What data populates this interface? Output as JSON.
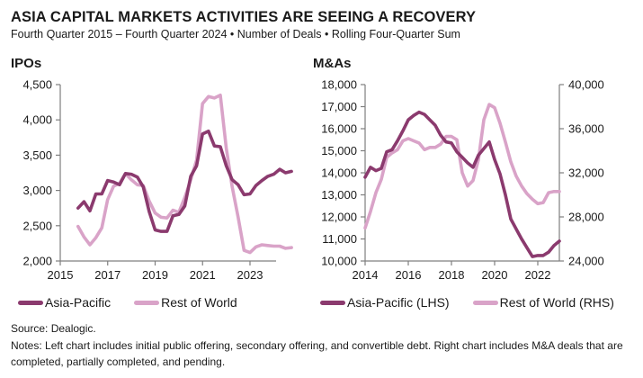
{
  "title": "ASIA CAPITAL MARKETS ACTIVITIES ARE SEEING A RECOVERY",
  "subtitle": "Fourth Quarter 2015 – Fourth Quarter 2024 • Number of Deals • Rolling Four-Quarter Sum",
  "source": "Source: Dealogic.",
  "notes": "Notes: Left chart includes initial public offering, secondary offering, and convertible debt. Right chart includes M&A deals that are completed, partially completed, and pending.",
  "colors": {
    "asia_pacific": "#8b3a6e",
    "rest_of_world": "#d9a3c8",
    "axis": "#7f7f7f"
  },
  "chart_data": [
    {
      "type": "line",
      "title": "IPOs",
      "xlabel": "",
      "ylabel": "",
      "x_start": 2015.75,
      "x_step": 0.25,
      "xlim": [
        2015,
        2024.1
      ],
      "xticks": [
        2015,
        2017,
        2019,
        2021,
        2023
      ],
      "ylim": [
        2000,
        4500
      ],
      "yticks": [
        2000,
        2500,
        3000,
        3500,
        4000,
        4500
      ],
      "ytick_labels": [
        "2,000",
        "2,500",
        "3,000",
        "3,500",
        "4,000",
        "4,500"
      ],
      "grid": false,
      "legend": "bottom",
      "series": [
        {
          "name": "Asia-Pacific",
          "color_key": "asia_pacific",
          "values": [
            2750,
            2840,
            2710,
            2950,
            2950,
            3140,
            3120,
            3080,
            3240,
            3230,
            3190,
            3050,
            2700,
            2440,
            2420,
            2420,
            2640,
            2660,
            2780,
            3200,
            3350,
            3800,
            3840,
            3630,
            3620,
            3350,
            3150,
            3080,
            2940,
            2950,
            3070,
            3140,
            3200,
            3230,
            3300,
            3250,
            3270
          ]
        },
        {
          "name": "Rest of World",
          "color_key": "rest_of_world",
          "values": [
            2490,
            2340,
            2230,
            2330,
            2470,
            2870,
            3060,
            3100,
            3240,
            3150,
            3080,
            3070,
            2850,
            2680,
            2620,
            2610,
            2720,
            2690,
            2900,
            3150,
            3430,
            4230,
            4330,
            4310,
            4350,
            3600,
            3050,
            2620,
            2150,
            2120,
            2200,
            2230,
            2220,
            2210,
            2210,
            2180,
            2190
          ]
        }
      ]
    },
    {
      "type": "line",
      "title": "M&As",
      "xlabel": "",
      "ylabel": "",
      "x_start": 2014,
      "x_step": 0.25,
      "xlim": [
        2014,
        2023
      ],
      "xticks": [
        2014,
        2016,
        2018,
        2020,
        2022
      ],
      "ylim": [
        10000,
        18000
      ],
      "yticks": [
        10000,
        11000,
        12000,
        13000,
        14000,
        15000,
        16000,
        17000,
        18000
      ],
      "ytick_labels": [
        "10,000",
        "11,000",
        "12,000",
        "13,000",
        "14,000",
        "15,000",
        "16,000",
        "17,000",
        "18,000"
      ],
      "y2lim": [
        24000,
        40000
      ],
      "y2ticks": [
        24000,
        28000,
        32000,
        36000,
        40000
      ],
      "y2tick_labels": [
        "24,000",
        "28,000",
        "32,000",
        "36,000",
        "40,000"
      ],
      "grid": false,
      "legend": "bottom",
      "series": [
        {
          "name": "Asia-Pacific (LHS)",
          "axis": "left",
          "color_key": "asia_pacific",
          "values": [
            13800,
            14250,
            14100,
            14200,
            14950,
            15050,
            15450,
            15900,
            16400,
            16600,
            16750,
            16650,
            16400,
            16150,
            15700,
            15400,
            15350,
            14950,
            14700,
            14450,
            14250,
            14800,
            15100,
            15400,
            14600,
            13950,
            13000,
            11900,
            11450,
            11000,
            10600,
            10200,
            10250,
            10250,
            10400,
            10700,
            10900
          ]
        },
        {
          "name": "Rest of World (RHS)",
          "axis": "right",
          "color_key": "rest_of_world",
          "values": [
            27000,
            28500,
            30200,
            31400,
            33400,
            33800,
            34100,
            34900,
            35100,
            34900,
            34700,
            34100,
            34300,
            34300,
            34600,
            35300,
            35300,
            35000,
            32000,
            30800,
            31300,
            33200,
            36800,
            38200,
            37900,
            36500,
            34800,
            33000,
            31700,
            30800,
            30100,
            29600,
            29200,
            29300,
            30200,
            30300,
            30300
          ]
        }
      ]
    }
  ]
}
